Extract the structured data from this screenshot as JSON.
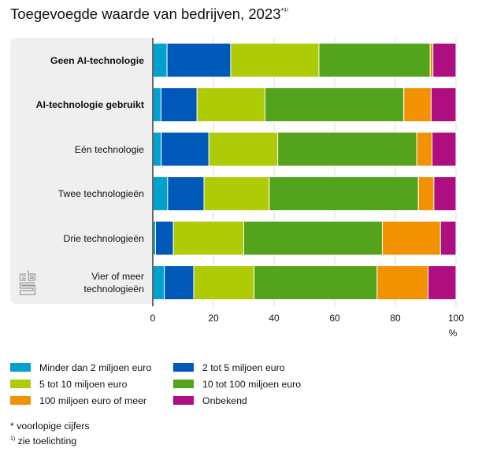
{
  "title": "Toegevoegde waarde van bedrijven, 2023",
  "title_suffix": "*¹⁾",
  "chart_data": {
    "type": "bar",
    "orientation": "horizontal",
    "stacked": true,
    "title": "Toegevoegde waarde van bedrijven, 2023*1)",
    "xlabel": "%",
    "ylabel": "",
    "xlim": [
      0,
      100
    ],
    "xticks": [
      0,
      20,
      40,
      60,
      80,
      100
    ],
    "grid": true,
    "legend_position": "bottom",
    "categories": [
      {
        "label": "Geen AI-technologie",
        "bold": true
      },
      {
        "label": "AI-technologie gebruikt",
        "bold": true
      },
      {
        "label": "Eén technologie",
        "bold": false
      },
      {
        "label": "Twee technologieën",
        "bold": false
      },
      {
        "label": "Drie technologieën",
        "bold": false
      },
      {
        "label": "Vier of meer technologieën",
        "bold": false
      }
    ],
    "series": [
      {
        "name": "Minder dan 2 miljoen euro",
        "color": "#00a1cd",
        "values": [
          4.7,
          2.7,
          2.8,
          4.9,
          0.9,
          3.8
        ]
      },
      {
        "name": "2 tot 5 miljoen euro",
        "color": "#0058b8",
        "values": [
          21.0,
          11.9,
          15.7,
          12.0,
          5.9,
          9.7
        ]
      },
      {
        "name": "5 tot 10 miljoen euro",
        "color": "#afcb05",
        "values": [
          29.1,
          22.4,
          22.7,
          21.5,
          23.2,
          19.9
        ]
      },
      {
        "name": "10 tot 100 miljoen euro",
        "color": "#53a31d",
        "values": [
          36.7,
          45.8,
          45.9,
          49.2,
          45.7,
          40.6
        ]
      },
      {
        "name": "100 miljoen euro of meer",
        "color": "#f39200",
        "values": [
          0.9,
          9.0,
          5.0,
          5.1,
          19.2,
          16.8
        ]
      },
      {
        "name": "Onbekend",
        "color": "#af0e80",
        "values": [
          7.6,
          8.2,
          7.9,
          7.3,
          5.1,
          9.2
        ]
      }
    ]
  },
  "legend": {
    "items": [
      {
        "label": "Minder dan 2 miljoen euro",
        "color": "#00a1cd"
      },
      {
        "label": "2 tot 5 miljoen euro",
        "color": "#0058b8"
      },
      {
        "label": "5 tot 10 miljoen euro",
        "color": "#afcb05"
      },
      {
        "label": "10 tot 100 miljoen euro",
        "color": "#53a31d"
      },
      {
        "label": "100 miljoen euro of meer",
        "color": "#f39200"
      },
      {
        "label": "Onbekend",
        "color": "#af0e80"
      }
    ]
  },
  "notes": {
    "provisional": "* voorlopige cijfers",
    "footnote_mark": "1)",
    "footnote_text": " zie toelichting"
  },
  "logo": "cbs-logo-icon"
}
